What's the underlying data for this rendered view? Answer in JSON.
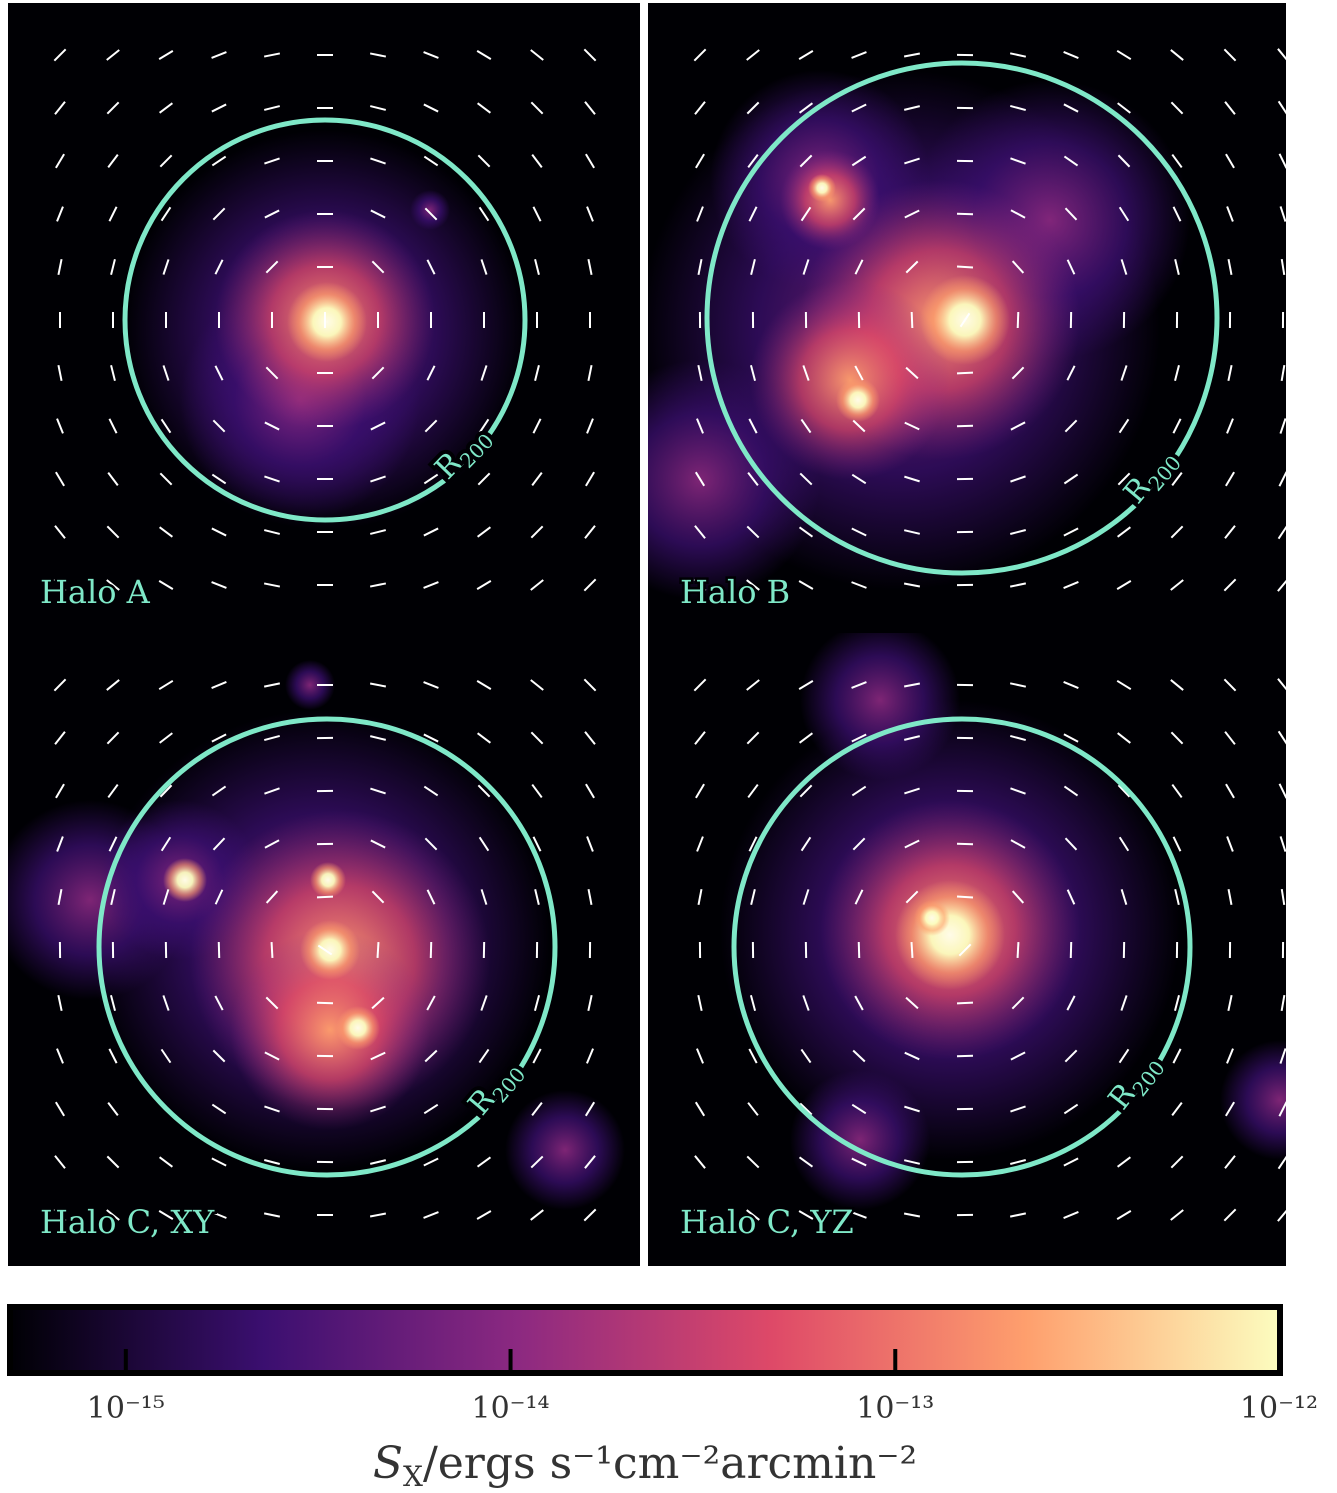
{
  "chart_data": {
    "type": "heatmap",
    "panels": [
      {
        "label": "Halo A",
        "radius_label": {
          "symbol": "R",
          "subscript": "200"
        }
      },
      {
        "label": "Halo B",
        "radius_label": {
          "symbol": "R",
          "subscript": "200"
        }
      },
      {
        "label": "Halo C, XY",
        "radius_label": {
          "symbol": "R",
          "subscript": "200"
        }
      },
      {
        "label": "Halo C, YZ",
        "radius_label": {
          "symbol": "R",
          "subscript": "200"
        }
      }
    ],
    "colorbar": {
      "log_scale": true,
      "xlim": [
        5e-16,
        1e-12
      ],
      "xticks": [
        {
          "value": 1e-15,
          "label": "10⁻¹⁵"
        },
        {
          "value": 1e-14,
          "label": "10⁻¹⁴"
        },
        {
          "value": 1e-13,
          "label": "10⁻¹³"
        },
        {
          "value": 1e-12,
          "label": "10⁻¹²"
        }
      ],
      "xlabel": {
        "symbol": "S",
        "subscript": "X",
        "unit": "/ergs s⁻¹cm⁻²arcmin⁻²"
      },
      "colors": [
        "#000004",
        "#3b0f70",
        "#8c2981",
        "#de4968",
        "#fe9f6d",
        "#fcfdbf"
      ]
    }
  }
}
